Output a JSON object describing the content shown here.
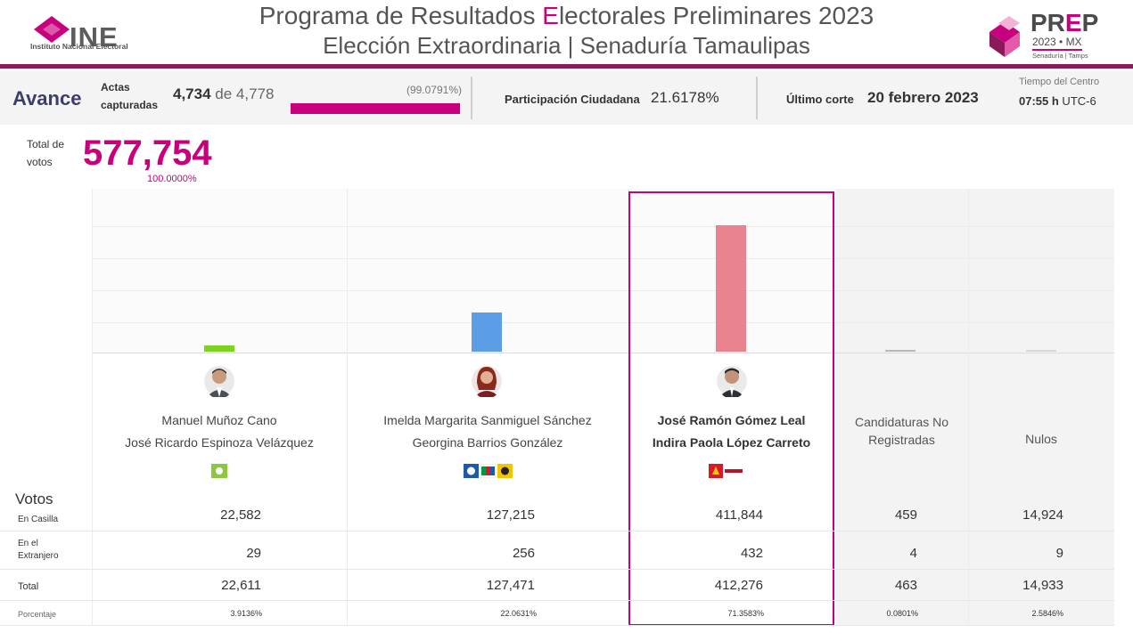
{
  "header": {
    "ine_brand": "INE",
    "ine_subtitle": "Instituto Nacional Electoral",
    "title_pre": "Programa de Resultados ",
    "title_accent": "E",
    "title_post": "lectorales Preliminares 2023",
    "subtitle": "Elección Extraordinaria | Senaduría Tamaulipas",
    "prep_brand_a": "PR",
    "prep_brand_b": "E",
    "prep_brand_c": "P",
    "prep_year": "2023 • MX",
    "prep_sub": "Senaduría | Tamps"
  },
  "avance": {
    "label": "Avance",
    "actas_label": "Actas capturadas",
    "actas_captured": "4,734",
    "actas_de": " de ",
    "actas_total": "4,778",
    "percent_text": "(99.0791%)",
    "progress": 0.990791,
    "participacion_label": "Participación Ciudadana",
    "participacion_value": "21.6178%",
    "corte_label": "Último corte",
    "corte_value": "20 febrero 2023",
    "tiempo_label": "Tiempo del Centro",
    "tiempo_time": "07:55 h",
    "tiempo_zone": " UTC-6"
  },
  "totals": {
    "label": "Total de votos",
    "value": "577,754",
    "percent": "100.0000%"
  },
  "candidates": [
    {
      "name": "Manuel Muñoz Cano",
      "suplente": "José Ricardo Espinoza Velázquez",
      "bar_color": "#7ed321",
      "share": 0.0391,
      "highlight": false
    },
    {
      "name": "Imelda Margarita Sanmiguel Sánchez",
      "suplente": "Georgina Barrios González",
      "bar_color": "#5b9ee6",
      "share": 0.2206,
      "highlight": false
    },
    {
      "name": "José Ramón Gómez Leal",
      "suplente": "Indira Paola López Carreto",
      "bar_color": "#e8838f",
      "share": 0.7136,
      "highlight": true
    }
  ],
  "others": [
    {
      "label": "Candidaturas No Registradas",
      "bar_color": "#b8b8b8",
      "share": 0.0008
    },
    {
      "label": "Nulos",
      "bar_color": "#d6d6d6",
      "share": 0.0258
    }
  ],
  "votos": {
    "title": "Votos",
    "rows": [
      {
        "label": "En Casilla",
        "values": [
          "22,582",
          "127,215",
          "411,844",
          "459",
          "14,924"
        ]
      },
      {
        "label": "En el Extranjero",
        "values": [
          "29",
          "256",
          "432",
          "4",
          "9"
        ]
      },
      {
        "label": "Total",
        "values": [
          "22,611",
          "127,471",
          "412,276",
          "463",
          "14,933"
        ]
      },
      {
        "label": "Porcentaje",
        "values": [
          "3.9136%",
          "22.0631%",
          "71.3583%",
          "0.0801%",
          "2.5846%"
        ]
      }
    ]
  },
  "colors": {
    "accent": "#c8007e",
    "header_line": "#8b1a5a"
  }
}
